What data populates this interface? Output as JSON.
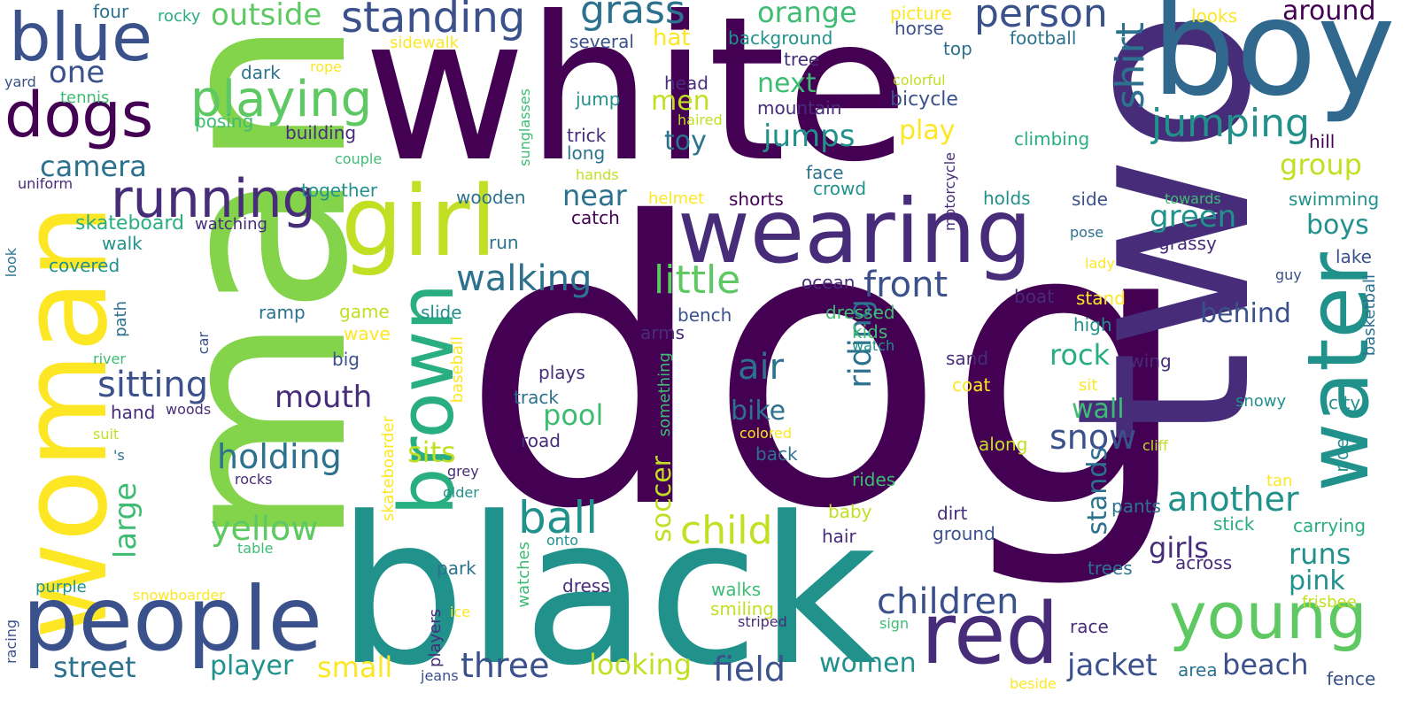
{
  "palette": {
    "purple_dark": "#440154",
    "indigo": "#472c7a",
    "indigo_mid": "#3b518b",
    "blue": "#31688e",
    "teal_blue": "#2c728e",
    "teal": "#21918c",
    "sea_green": "#28ae80",
    "green": "#3fbc73",
    "lime_green": "#5ec962",
    "light_green": "#84d44b",
    "yellow_green": "#c2df23",
    "yellow": "#fde725"
  },
  "words": [
    {
      "text": "dog",
      "color": "purple_dark"
    },
    {
      "text": "white",
      "color": "purple_dark"
    },
    {
      "text": "man",
      "color": "light_green"
    },
    {
      "text": "two",
      "color": "indigo"
    },
    {
      "text": "black",
      "color": "teal"
    },
    {
      "text": "boy",
      "color": "blue"
    },
    {
      "text": "woman",
      "color": "yellow"
    },
    {
      "text": "girl",
      "color": "yellow_green"
    },
    {
      "text": "wearing",
      "color": "indigo"
    },
    {
      "text": "people",
      "color": "indigo_mid"
    },
    {
      "text": "water",
      "color": "teal"
    },
    {
      "text": "red",
      "color": "indigo"
    },
    {
      "text": "brown",
      "color": "sea_green"
    },
    {
      "text": "young",
      "color": "lime_green"
    },
    {
      "text": "blue",
      "color": "indigo_mid"
    },
    {
      "text": "dogs",
      "color": "purple_dark"
    },
    {
      "text": "running",
      "color": "indigo"
    },
    {
      "text": "playing",
      "color": "lime_green"
    },
    {
      "text": "standing",
      "color": "indigo_mid"
    },
    {
      "text": "person",
      "color": "indigo_mid"
    },
    {
      "text": "grass",
      "color": "teal_blue"
    },
    {
      "text": "shirt",
      "color": "teal_blue"
    },
    {
      "text": "jumping",
      "color": "teal"
    },
    {
      "text": "little",
      "color": "lime_green"
    },
    {
      "text": "front",
      "color": "indigo_mid"
    },
    {
      "text": "walking",
      "color": "teal_blue"
    },
    {
      "text": "sitting",
      "color": "indigo_mid"
    },
    {
      "text": "air",
      "color": "teal_blue"
    },
    {
      "text": "ball",
      "color": "teal"
    },
    {
      "text": "child",
      "color": "yellow_green"
    },
    {
      "text": "children",
      "color": "indigo_mid"
    },
    {
      "text": "another",
      "color": "teal"
    },
    {
      "text": "snow",
      "color": "indigo_mid"
    },
    {
      "text": "riding",
      "color": "teal_blue"
    },
    {
      "text": "holding",
      "color": "teal_blue"
    },
    {
      "text": "yellow",
      "color": "lime_green"
    },
    {
      "text": "three",
      "color": "indigo_mid"
    },
    {
      "text": "field",
      "color": "indigo_mid"
    },
    {
      "text": "looking",
      "color": "yellow_green"
    },
    {
      "text": "jacket",
      "color": "indigo_mid"
    },
    {
      "text": "beach",
      "color": "indigo_mid"
    },
    {
      "text": "street",
      "color": "teal_blue"
    },
    {
      "text": "player",
      "color": "teal"
    },
    {
      "text": "small",
      "color": "yellow"
    },
    {
      "text": "women",
      "color": "teal"
    },
    {
      "text": "outside",
      "color": "lime_green"
    },
    {
      "text": "orange",
      "color": "green"
    },
    {
      "text": "around",
      "color": "purple_dark"
    },
    {
      "text": "one",
      "color": "indigo_mid"
    },
    {
      "text": "camera",
      "color": "teal_blue"
    },
    {
      "text": "jumps",
      "color": "teal"
    },
    {
      "text": "next",
      "color": "green"
    },
    {
      "text": "men",
      "color": "yellow_green"
    },
    {
      "text": "toy",
      "color": "teal_blue"
    },
    {
      "text": "play",
      "color": "yellow"
    },
    {
      "text": "group",
      "color": "yellow_green"
    },
    {
      "text": "green",
      "color": "teal"
    },
    {
      "text": "boys",
      "color": "teal"
    },
    {
      "text": "near",
      "color": "teal_blue"
    },
    {
      "text": "mouth",
      "color": "indigo"
    },
    {
      "text": "large",
      "color": "green"
    },
    {
      "text": "rock",
      "color": "sea_green"
    },
    {
      "text": "behind",
      "color": "indigo_mid"
    },
    {
      "text": "wall",
      "color": "green"
    },
    {
      "text": "pool",
      "color": "green"
    },
    {
      "text": "bike",
      "color": "teal_blue"
    },
    {
      "text": "sits",
      "color": "yellow_green"
    },
    {
      "text": "soccer",
      "color": "yellow_green"
    },
    {
      "text": "stands",
      "color": "teal_blue"
    },
    {
      "text": "girls",
      "color": "indigo"
    },
    {
      "text": "runs",
      "color": "teal"
    },
    {
      "text": "pink",
      "color": "teal"
    },
    {
      "text": "hat",
      "color": "yellow"
    },
    {
      "text": "skateboard",
      "color": "sea_green"
    },
    {
      "text": "watching",
      "color": "indigo"
    },
    {
      "text": "walk",
      "color": "teal"
    },
    {
      "text": "covered",
      "color": "teal"
    },
    {
      "text": "together",
      "color": "teal"
    },
    {
      "text": "building",
      "color": "indigo"
    },
    {
      "text": "posing",
      "color": "green"
    },
    {
      "text": "dark",
      "color": "teal_blue"
    },
    {
      "text": "four",
      "color": "teal_blue"
    },
    {
      "text": "rocky",
      "color": "sea_green"
    },
    {
      "text": "sidewalk",
      "color": "yellow"
    },
    {
      "text": "yard",
      "color": "indigo_mid"
    },
    {
      "text": "tennis",
      "color": "green"
    },
    {
      "text": "rope",
      "color": "yellow"
    },
    {
      "text": "uniform",
      "color": "indigo"
    },
    {
      "text": "couple",
      "color": "green"
    },
    {
      "text": "look",
      "color": "teal_blue"
    },
    {
      "text": "picture",
      "color": "yellow"
    },
    {
      "text": "horse",
      "color": "indigo_mid"
    },
    {
      "text": "top",
      "color": "teal_blue"
    },
    {
      "text": "background",
      "color": "teal"
    },
    {
      "text": "several",
      "color": "indigo_mid"
    },
    {
      "text": "tree",
      "color": "indigo"
    },
    {
      "text": "head",
      "color": "indigo"
    },
    {
      "text": "mountain",
      "color": "indigo"
    },
    {
      "text": "jump",
      "color": "teal"
    },
    {
      "text": "haired",
      "color": "yellow_green"
    },
    {
      "text": "trick",
      "color": "indigo"
    },
    {
      "text": "long",
      "color": "teal_blue"
    },
    {
      "text": "hands",
      "color": "yellow_green"
    },
    {
      "text": "sunglasses",
      "color": "green"
    },
    {
      "text": "colorful",
      "color": "yellow_green"
    },
    {
      "text": "bicycle",
      "color": "indigo_mid"
    },
    {
      "text": "looks",
      "color": "yellow"
    },
    {
      "text": "football",
      "color": "teal_blue"
    },
    {
      "text": "climbing",
      "color": "sea_green"
    },
    {
      "text": "hill",
      "color": "purple_dark"
    },
    {
      "text": "face",
      "color": "teal_blue"
    },
    {
      "text": "crowd",
      "color": "teal"
    },
    {
      "text": "helmet",
      "color": "yellow"
    },
    {
      "text": "shorts",
      "color": "purple_dark"
    },
    {
      "text": "holds",
      "color": "teal"
    },
    {
      "text": "side",
      "color": "indigo_mid"
    },
    {
      "text": "towards",
      "color": "green"
    },
    {
      "text": "swimming",
      "color": "teal"
    },
    {
      "text": "lake",
      "color": "indigo_mid"
    },
    {
      "text": "motorcycle",
      "color": "indigo"
    },
    {
      "text": "grassy",
      "color": "indigo"
    },
    {
      "text": "pose",
      "color": "teal_blue"
    },
    {
      "text": "lady",
      "color": "yellow"
    },
    {
      "text": "guy",
      "color": "indigo_mid"
    },
    {
      "text": "basketball",
      "color": "teal_blue"
    },
    {
      "text": "wooden",
      "color": "teal_blue"
    },
    {
      "text": "catch",
      "color": "purple_dark"
    },
    {
      "text": "run",
      "color": "teal_blue"
    },
    {
      "text": "ramp",
      "color": "teal_blue"
    },
    {
      "text": "game",
      "color": "yellow_green"
    },
    {
      "text": "wave",
      "color": "yellow"
    },
    {
      "text": "slide",
      "color": "teal"
    },
    {
      "text": "bench",
      "color": "indigo_mid"
    },
    {
      "text": "arms",
      "color": "indigo"
    },
    {
      "text": "ocean",
      "color": "indigo"
    },
    {
      "text": "dressed",
      "color": "green"
    },
    {
      "text": "kids",
      "color": "green"
    },
    {
      "text": "watch",
      "color": "teal"
    },
    {
      "text": "boat",
      "color": "indigo"
    },
    {
      "text": "stand",
      "color": "yellow"
    },
    {
      "text": "high",
      "color": "teal"
    },
    {
      "text": "path",
      "color": "teal_blue"
    },
    {
      "text": "river",
      "color": "green"
    },
    {
      "text": "car",
      "color": "indigo_mid"
    },
    {
      "text": "big",
      "color": "indigo_mid"
    },
    {
      "text": "hand",
      "color": "indigo"
    },
    {
      "text": "woods",
      "color": "indigo"
    },
    {
      "text": "baseball",
      "color": "yellow"
    },
    {
      "text": "plays",
      "color": "indigo"
    },
    {
      "text": "track",
      "color": "teal_blue"
    },
    {
      "text": "road",
      "color": "indigo"
    },
    {
      "text": "something",
      "color": "green"
    },
    {
      "text": "sand",
      "color": "indigo"
    },
    {
      "text": "coat",
      "color": "yellow"
    },
    {
      "text": "swing",
      "color": "indigo"
    },
    {
      "text": "snowy",
      "color": "teal"
    },
    {
      "text": "city",
      "color": "teal"
    },
    {
      "text": "sit",
      "color": "yellow"
    },
    {
      "text": "along",
      "color": "yellow_green"
    },
    {
      "text": "cliff",
      "color": "yellow_green"
    },
    {
      "text": "ride",
      "color": "teal"
    },
    {
      "text": "colored",
      "color": "yellow"
    },
    {
      "text": "back",
      "color": "teal_blue"
    },
    {
      "text": "rides",
      "color": "green"
    },
    {
      "text": "suit",
      "color": "yellow_green"
    },
    {
      "text": "'s",
      "color": "teal_blue"
    },
    {
      "text": "rocks",
      "color": "indigo"
    },
    {
      "text": "skateboarder",
      "color": "yellow"
    },
    {
      "text": "grey",
      "color": "indigo"
    },
    {
      "text": "older",
      "color": "teal"
    },
    {
      "text": "tan",
      "color": "yellow"
    },
    {
      "text": "pants",
      "color": "teal_blue"
    },
    {
      "text": "stick",
      "color": "sea_green"
    },
    {
      "text": "carrying",
      "color": "sea_green"
    },
    {
      "text": "baby",
      "color": "yellow_green"
    },
    {
      "text": "hair",
      "color": "indigo"
    },
    {
      "text": "dirt",
      "color": "indigo"
    },
    {
      "text": "ground",
      "color": "indigo_mid"
    },
    {
      "text": "table",
      "color": "green"
    },
    {
      "text": "purple",
      "color": "teal"
    },
    {
      "text": "snowboarder",
      "color": "yellow"
    },
    {
      "text": "onto",
      "color": "teal"
    },
    {
      "text": "park",
      "color": "teal_blue"
    },
    {
      "text": "watches",
      "color": "green"
    },
    {
      "text": "dress",
      "color": "indigo"
    },
    {
      "text": "trees",
      "color": "teal_blue"
    },
    {
      "text": "across",
      "color": "indigo"
    },
    {
      "text": "walks",
      "color": "green"
    },
    {
      "text": "smiling",
      "color": "yellow_green"
    },
    {
      "text": "striped",
      "color": "indigo"
    },
    {
      "text": "frisbee",
      "color": "yellow_green"
    },
    {
      "text": "racing",
      "color": "indigo_mid"
    },
    {
      "text": "jeans",
      "color": "indigo_mid"
    },
    {
      "text": "ice",
      "color": "yellow"
    },
    {
      "text": "players",
      "color": "indigo"
    },
    {
      "text": "sign",
      "color": "green"
    },
    {
      "text": "race",
      "color": "indigo"
    },
    {
      "text": "area",
      "color": "teal_blue"
    },
    {
      "text": "beside",
      "color": "yellow"
    },
    {
      "text": "fence",
      "color": "indigo_mid"
    }
  ]
}
